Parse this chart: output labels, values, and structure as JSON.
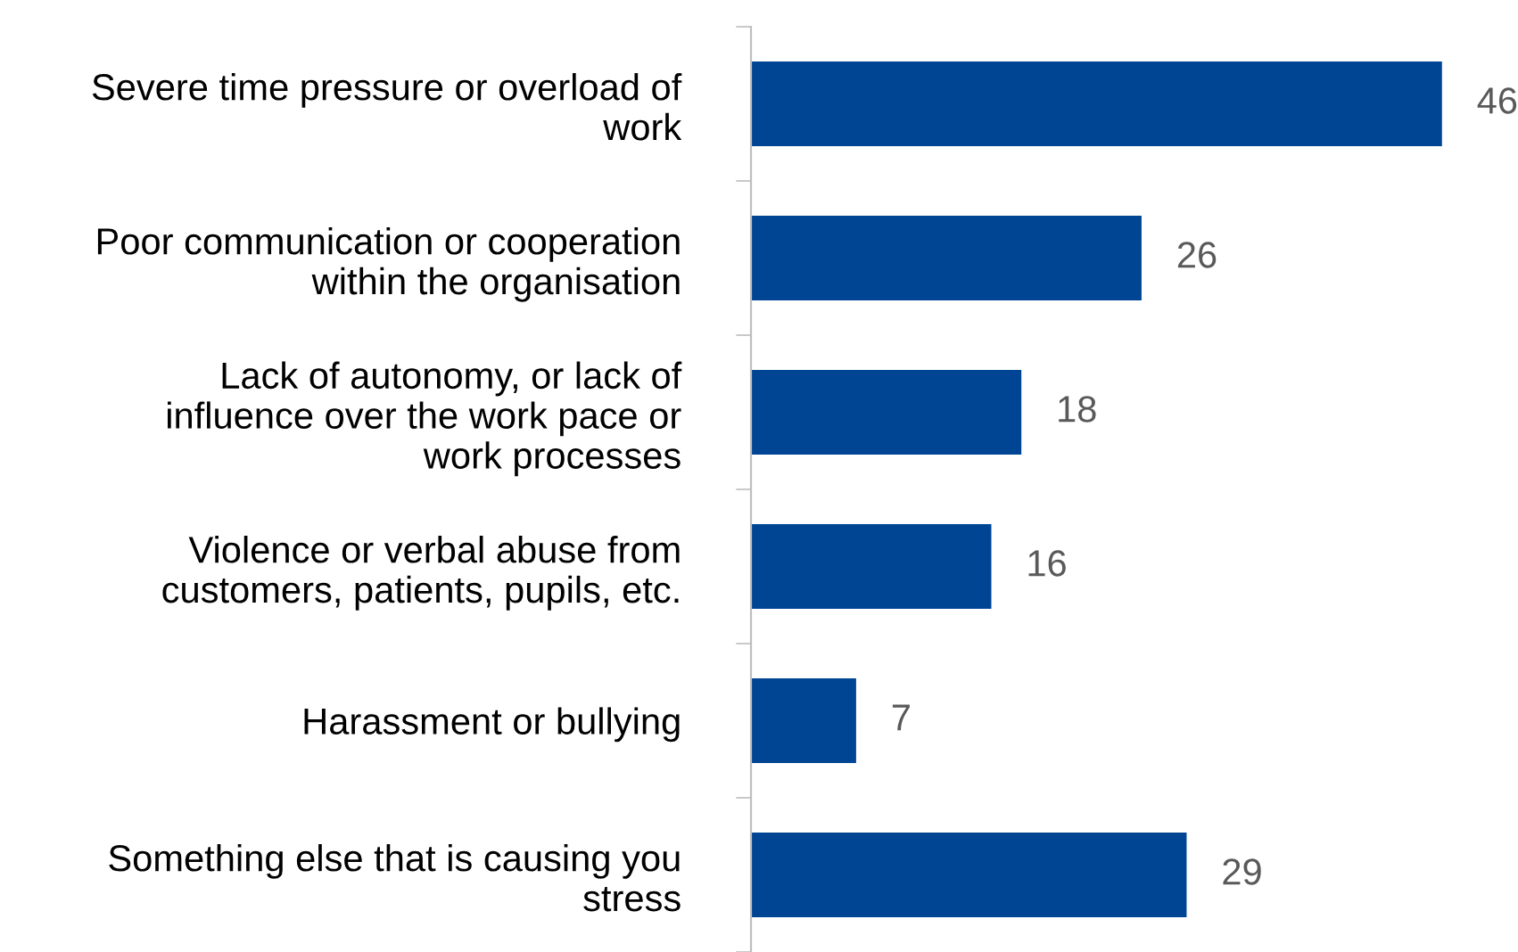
{
  "chart_data": {
    "type": "bar",
    "orientation": "horizontal",
    "categories": [
      "Severe time pressure or overload of\nwork",
      "Poor communication or cooperation\nwithin the organisation",
      "Lack of autonomy, or lack of\ninfluence over the work pace or\nwork processes",
      "Violence or verbal abuse from\ncustomers, patients, pupils, etc.",
      "Harassment or bullying",
      "Something else that is causing you\nstress"
    ],
    "values": [
      46,
      26,
      18,
      16,
      7,
      29
    ],
    "color": "#004494",
    "data_labels": true,
    "grid": false,
    "legend": false
  }
}
